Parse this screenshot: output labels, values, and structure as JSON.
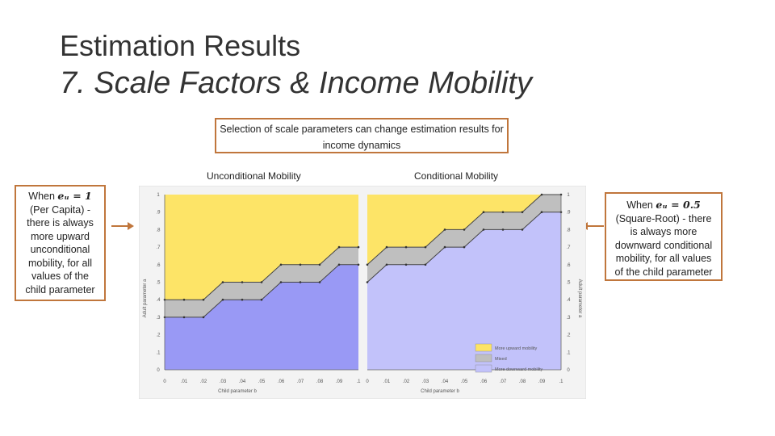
{
  "slide": {
    "title": "Estimation Results",
    "subtitle": "7. Scale Factors & Income Mobility",
    "top_callout": "Selection of scale parameters can change estimation results for income dynamics",
    "left_label": "Unconditional Mobility",
    "right_label": "Conditional Mobility",
    "left_note": {
      "prefix": "When ",
      "equation": "eᵤ = 1",
      "text": "(Per Capita) - there is always more upward unconditional mobility, for all values of the child parameter"
    },
    "right_note": {
      "prefix": "When ",
      "equation": "eᵤ = 0.5",
      "text": "(Square-Root) - there is always more downward conditional mobility, for all values of the child parameter"
    },
    "colors": {
      "border": "#c0763c",
      "upward": "#fde467",
      "mixed": "#bfbfbf",
      "downward_left": "#9999f5",
      "downward_right": "#c2c2fa"
    }
  },
  "chart_data": [
    {
      "type": "area",
      "title": "Unconditional Mobility",
      "xlabel": "Child parameter b",
      "ylabel": "Adult parameter a",
      "x_ticks": [
        "0",
        ".01",
        ".02",
        ".03",
        ".04",
        ".05",
        ".06",
        ".07",
        ".08",
        ".09",
        ".1"
      ],
      "y_ticks": [
        "0",
        ".1",
        ".2",
        ".3",
        ".4",
        ".5",
        ".6",
        ".7",
        ".8",
        ".9",
        "1"
      ],
      "xlim": [
        0,
        0.1
      ],
      "ylim": [
        0,
        1
      ],
      "x": [
        0,
        0.01,
        0.02,
        0.03,
        0.04,
        0.05,
        0.06,
        0.07,
        0.08,
        0.09,
        0.1
      ],
      "series": [
        {
          "name": "More upward mobility",
          "lower": [
            0.4,
            0.4,
            0.4,
            0.5,
            0.5,
            0.5,
            0.6,
            0.6,
            0.6,
            0.7,
            0.7
          ],
          "upper": [
            1,
            1,
            1,
            1,
            1,
            1,
            1,
            1,
            1,
            1,
            1
          ]
        },
        {
          "name": "Mixed",
          "lower": [
            0.3,
            0.3,
            0.3,
            0.4,
            0.4,
            0.4,
            0.5,
            0.5,
            0.5,
            0.6,
            0.6
          ],
          "upper": [
            0.4,
            0.4,
            0.4,
            0.5,
            0.5,
            0.5,
            0.6,
            0.6,
            0.6,
            0.7,
            0.7
          ]
        },
        {
          "name": "More downward mobility",
          "lower": [
            0,
            0,
            0,
            0,
            0,
            0,
            0,
            0,
            0,
            0,
            0
          ],
          "upper": [
            0.3,
            0.3,
            0.3,
            0.4,
            0.4,
            0.4,
            0.5,
            0.5,
            0.5,
            0.6,
            0.6
          ]
        }
      ]
    },
    {
      "type": "area",
      "title": "Conditional Mobility",
      "xlabel": "Child parameter b",
      "ylabel": "Adult parameter a",
      "x_ticks": [
        "0",
        ".01",
        ".02",
        ".03",
        ".04",
        ".05",
        ".06",
        ".07",
        ".08",
        ".09",
        ".1"
      ],
      "y_ticks": [
        "0",
        ".1",
        ".2",
        ".3",
        ".4",
        ".5",
        ".6",
        ".7",
        ".8",
        ".9",
        "1"
      ],
      "xlim": [
        0,
        0.1
      ],
      "ylim": [
        0,
        1
      ],
      "x": [
        0,
        0.01,
        0.02,
        0.03,
        0.04,
        0.05,
        0.06,
        0.07,
        0.08,
        0.09,
        0.1
      ],
      "legend": [
        "More upward mobility",
        "Mixed",
        "More downward mobility"
      ],
      "legend_position": "bottom-right",
      "series": [
        {
          "name": "More upward mobility",
          "lower": [
            0.6,
            0.7,
            0.7,
            0.7,
            0.8,
            0.8,
            0.9,
            0.9,
            0.9,
            1.0,
            1.0
          ],
          "upper": [
            1,
            1,
            1,
            1,
            1,
            1,
            1,
            1,
            1,
            1,
            1
          ]
        },
        {
          "name": "Mixed",
          "lower": [
            0.5,
            0.6,
            0.6,
            0.6,
            0.7,
            0.7,
            0.8,
            0.8,
            0.8,
            0.9,
            0.9
          ],
          "upper": [
            0.6,
            0.7,
            0.7,
            0.7,
            0.8,
            0.8,
            0.9,
            0.9,
            0.9,
            1.0,
            1.0
          ]
        },
        {
          "name": "More downward mobility",
          "lower": [
            0,
            0,
            0,
            0,
            0,
            0,
            0,
            0,
            0,
            0,
            0
          ],
          "upper": [
            0.5,
            0.6,
            0.6,
            0.6,
            0.7,
            0.7,
            0.8,
            0.8,
            0.8,
            0.9,
            0.9
          ]
        }
      ]
    }
  ]
}
